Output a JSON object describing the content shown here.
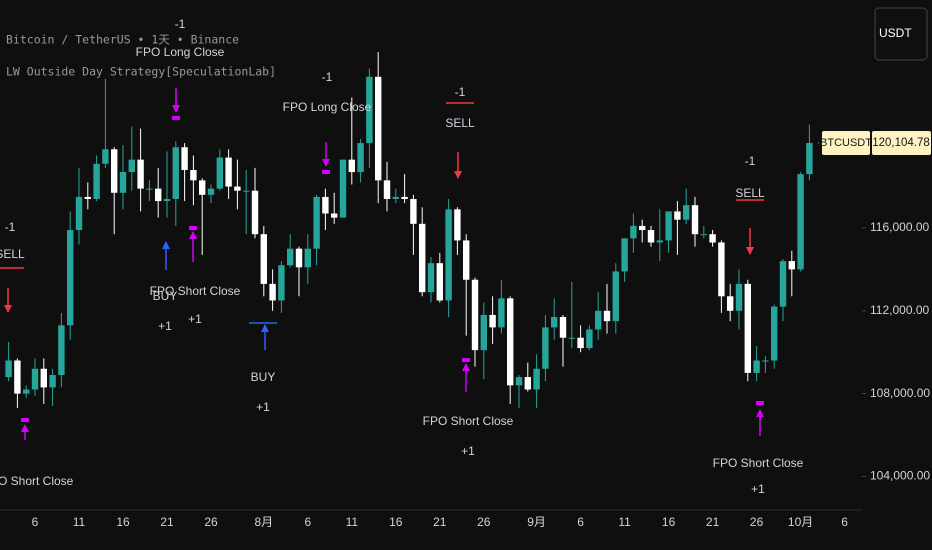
{
  "header": {
    "symbol_title": "Bitcoin / TetherUS • 1天 • Binance",
    "indicator": "LW Outside Day Strategy[SpeculationLab]",
    "currency": "USDT"
  },
  "chart_data": {
    "type": "candlestick",
    "categories": [
      null,
      null,
      null,
      "6",
      null,
      null,
      null,
      null,
      "11",
      null,
      null,
      null,
      null,
      "16",
      null,
      null,
      null,
      null,
      "21",
      null,
      null,
      null,
      null,
      "26",
      null,
      null,
      null,
      null,
      null,
      "8月",
      null,
      null,
      null,
      null,
      "6",
      null,
      null,
      null,
      null,
      "11",
      null,
      null,
      null,
      null,
      "16",
      null,
      null,
      null,
      null,
      "21",
      null,
      null,
      null,
      null,
      "26",
      null,
      null,
      null,
      null,
      null,
      "9月",
      null,
      null,
      null,
      null,
      "6",
      null,
      null,
      null,
      null,
      "11",
      null,
      null,
      null,
      null,
      "16",
      null,
      null,
      null,
      null,
      "21",
      null,
      null,
      null,
      null,
      "26",
      null,
      null,
      null,
      null,
      "10月",
      null,
      null,
      null,
      null,
      "6"
    ],
    "open": [
      108800,
      109600,
      108000,
      108200,
      109200,
      108300,
      108900,
      111300,
      115900,
      117500,
      117400,
      119100,
      119800,
      117700,
      118700,
      119300,
      117900,
      117900,
      117300,
      117400,
      119900,
      118800,
      118300,
      117600,
      117900,
      119400,
      118000,
      117800,
      117800,
      115700,
      113300,
      112500,
      114200,
      115000,
      114100,
      115000,
      117500,
      116700,
      116500,
      119300,
      118700,
      120100,
      123300,
      118300,
      117400,
      117500,
      117400,
      116200,
      112900,
      114300,
      112500,
      116900,
      115400,
      113500,
      110100,
      111800,
      111200,
      112600,
      108400,
      108800,
      108200,
      109200,
      111200,
      111700,
      110700,
      110700,
      110200,
      111100,
      112000,
      111500,
      113900,
      115500,
      116100,
      115900,
      115300,
      115400,
      116800,
      116400,
      117100,
      115700,
      115700,
      115300,
      112700,
      112000,
      113300,
      109000,
      109600,
      109600,
      112200,
      114400,
      114000,
      118600,
      null,
      null,
      null,
      null
    ],
    "high": [
      110500,
      109700,
      108400,
      109700,
      109700,
      109200,
      111900,
      116800,
      118900,
      118200,
      119500,
      123200,
      119900,
      120000,
      120900,
      120800,
      118300,
      118900,
      119700,
      120200,
      120100,
      119500,
      118400,
      118100,
      119800,
      119800,
      119300,
      118800,
      118900,
      116100,
      114000,
      114400,
      115700,
      115100,
      115700,
      117600,
      117900,
      117700,
      119300,
      122300,
      120300,
      123700,
      124500,
      119200,
      117900,
      118600,
      117600,
      117000,
      114600,
      114800,
      117400,
      117000,
      115700,
      113600,
      112400,
      112700,
      113500,
      112700,
      108900,
      109500,
      109900,
      111800,
      112600,
      111800,
      113400,
      111300,
      111300,
      112900,
      113300,
      114300,
      115500,
      116700,
      116400,
      116100,
      116900,
      116800,
      117300,
      117900,
      117500,
      116100,
      115900,
      115400,
      113300,
      114000,
      113500,
      110300,
      109800,
      112300,
      114500,
      114900,
      118700,
      121000,
      null,
      null,
      null,
      null
    ],
    "low": [
      108600,
      107300,
      107800,
      107900,
      107500,
      107400,
      108300,
      110600,
      115200,
      116900,
      117300,
      118900,
      115700,
      116900,
      117800,
      116800,
      117300,
      116500,
      116500,
      116100,
      117300,
      117100,
      114700,
      117200,
      117800,
      117400,
      116900,
      115700,
      115500,
      112700,
      112000,
      111900,
      114100,
      112700,
      113300,
      114200,
      115900,
      116200,
      116500,
      118100,
      118200,
      118900,
      117200,
      116800,
      117200,
      117200,
      114700,
      112700,
      112400,
      112400,
      111700,
      114700,
      110800,
      109300,
      108700,
      110400,
      110900,
      107500,
      107300,
      108100,
      107300,
      108600,
      110600,
      109300,
      110200,
      110000,
      110100,
      110600,
      110900,
      110900,
      113400,
      114800,
      115300,
      115100,
      114400,
      114800,
      114700,
      116200,
      115100,
      115500,
      115100,
      111900,
      111500,
      111100,
      108600,
      108600,
      109000,
      109200,
      111500,
      112700,
      113900,
      118300,
      null,
      null,
      null,
      null
    ],
    "close": [
      109600,
      108000,
      108200,
      109200,
      108300,
      108900,
      111300,
      115900,
      117500,
      117400,
      119100,
      119800,
      117700,
      118700,
      119300,
      117900,
      117900,
      117300,
      117400,
      119900,
      118800,
      118300,
      117600,
      117900,
      119400,
      118000,
      117800,
      117800,
      115700,
      113300,
      112500,
      114200,
      115000,
      114100,
      115000,
      117500,
      116700,
      116500,
      119300,
      118700,
      120100,
      123300,
      118300,
      117400,
      117500,
      117400,
      116200,
      112900,
      114300,
      112500,
      116900,
      115400,
      113500,
      110100,
      111800,
      111200,
      112600,
      108400,
      108800,
      108200,
      109200,
      111200,
      111700,
      110700,
      110700,
      110200,
      111100,
      112000,
      111500,
      113900,
      115500,
      116100,
      115900,
      115300,
      115400,
      116800,
      116400,
      117100,
      115700,
      115700,
      115300,
      112700,
      112000,
      113300,
      109000,
      109600,
      109600,
      112200,
      114400,
      114000,
      118600,
      120104.78,
      null,
      null,
      null,
      null
    ],
    "up_color": "#26a69a",
    "down_color": "#ffffff",
    "ylim": [
      102380,
      127010
    ],
    "yticks": [
      {
        "value": 104000,
        "label": "104,000.00"
      },
      {
        "value": 108000,
        "label": "108,000.00"
      },
      {
        "value": 112000,
        "label": "112,000.00"
      },
      {
        "value": 116000,
        "label": "116,000.00"
      }
    ],
    "last_price": {
      "symbol": "BTCUSDT",
      "value": 120104.78,
      "label": "120,104.78"
    },
    "signals": [
      {
        "text": "FPO Short Close"
      },
      {
        "qty": "-1",
        "text": "SELL"
      },
      {
        "qty": "-1",
        "text": "FPO Long Close"
      },
      {
        "qty": "+1",
        "text": "BUY"
      },
      {
        "qty": "+1",
        "text": "FPO Short Close"
      },
      {
        "qty": "-1",
        "text": "FPO Long Close"
      },
      {
        "qty": "+1",
        "text": "BUY"
      },
      {
        "qty": "-1",
        "text": "SELL"
      },
      {
        "qty": "+1",
        "text": "FPO Short Close"
      },
      {
        "qty": "-1",
        "text": "SELL"
      },
      {
        "qty": "+1",
        "text": "FPO Short Close"
      }
    ]
  }
}
